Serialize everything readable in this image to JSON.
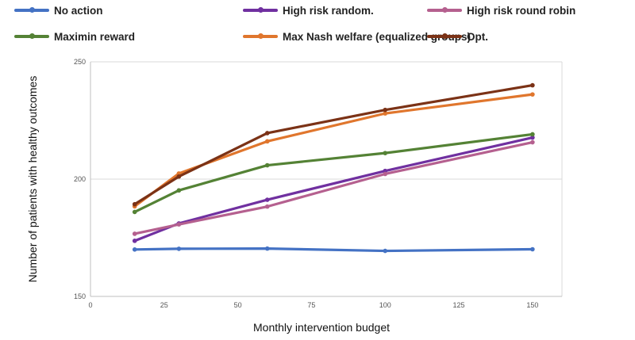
{
  "chart_data": {
    "type": "line",
    "title": "",
    "xlabel": "Monthly intervention budget",
    "ylabel": "Number of  patients  with healthy outcomes",
    "xlim": [
      0,
      160
    ],
    "ylim": [
      150,
      250
    ],
    "xticks": [
      0,
      25,
      50,
      75,
      100,
      125,
      150
    ],
    "yticks": [
      150,
      200,
      250
    ],
    "x": [
      15,
      30,
      60,
      100,
      150
    ],
    "grid": "horizontal",
    "legend_position": "top",
    "series": [
      {
        "name": "No action",
        "color": "#4472c4",
        "values": [
          170,
          170.3,
          170.4,
          169.4,
          170.1
        ]
      },
      {
        "name": "High risk random.",
        "color": "#7030a0",
        "values": [
          173.7,
          181.1,
          191.2,
          203.5,
          217.7
        ]
      },
      {
        "name": "High risk round robin",
        "color": "#b5608f",
        "values": [
          176.7,
          180.7,
          188.3,
          202.2,
          215.7
        ]
      },
      {
        "name": "Maximin reward",
        "color": "#548235",
        "values": [
          186,
          195.2,
          205.9,
          211.1,
          219.1
        ]
      },
      {
        "name": "Max Nash welfare (equalized groups)",
        "color": "#e0762d",
        "values": [
          188.4,
          202.4,
          216.1,
          228,
          236.1
        ]
      },
      {
        "name": "Opt.",
        "color": "#7b3216",
        "values": [
          189.3,
          201.1,
          219.6,
          229.5,
          240
        ]
      }
    ]
  }
}
